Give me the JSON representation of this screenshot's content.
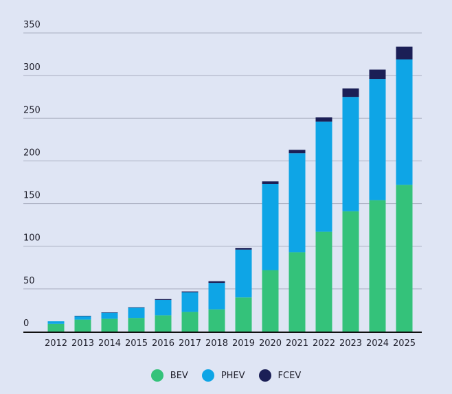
{
  "chart_data": {
    "type": "bar",
    "stacked": true,
    "title": "",
    "xlabel": "",
    "ylabel": "",
    "ylim": [
      0,
      350
    ],
    "yticks": [
      0,
      50,
      100,
      150,
      200,
      250,
      300,
      350
    ],
    "grid": true,
    "legend_position": "bottom-center",
    "categories": [
      "2012",
      "2013",
      "2014",
      "2015",
      "2016",
      "2017",
      "2018",
      "2019",
      "2020",
      "2021",
      "2022",
      "2023",
      "2024",
      "2025"
    ],
    "series": [
      {
        "name": "BEV",
        "color": "#34c27a",
        "values": [
          9,
          14,
          15,
          16,
          19,
          23,
          26,
          40,
          72,
          93,
          117,
          141,
          154,
          172
        ]
      },
      {
        "name": "PHEV",
        "color": "#0ea5e6",
        "values": [
          3,
          4,
          7,
          12,
          18,
          23,
          31,
          56,
          101,
          116,
          129,
          134,
          142,
          147
        ]
      },
      {
        "name": "FCEV",
        "color": "#1b1f56",
        "values": [
          0,
          0.5,
          0.5,
          0.5,
          1,
          1,
          2,
          2,
          3,
          4,
          5,
          10,
          11,
          15
        ]
      }
    ]
  }
}
